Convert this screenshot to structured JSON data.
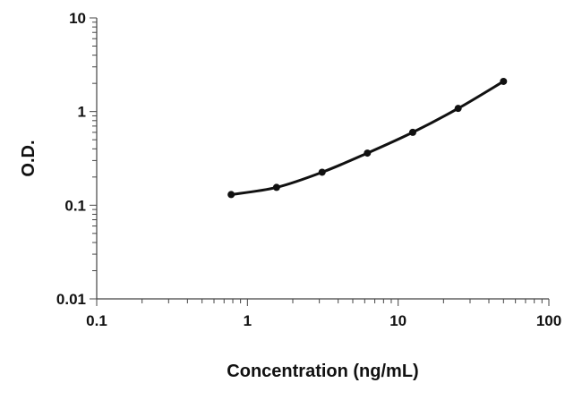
{
  "chart_data": {
    "type": "scatter",
    "title": "",
    "xlabel": "Concentration (ng/mL)",
    "ylabel": "O.D.",
    "x_scale": "log",
    "y_scale": "log",
    "xlim": [
      0.1,
      100
    ],
    "ylim": [
      0.01,
      10
    ],
    "x_ticks": [
      "0.1",
      "1",
      "10",
      "100"
    ],
    "y_ticks": [
      "0.01",
      "0.1",
      "1",
      "10"
    ],
    "grid": false,
    "legend": "none",
    "series": [
      {
        "x": [
          0.78,
          1.56,
          3.13,
          6.25,
          12.5,
          25,
          50
        ],
        "y": [
          0.13,
          0.155,
          0.225,
          0.36,
          0.6,
          1.08,
          2.1
        ],
        "marker": "circle",
        "fit_line": true
      }
    ],
    "colors": {
      "line": "#111111",
      "axis": "#444444"
    }
  }
}
